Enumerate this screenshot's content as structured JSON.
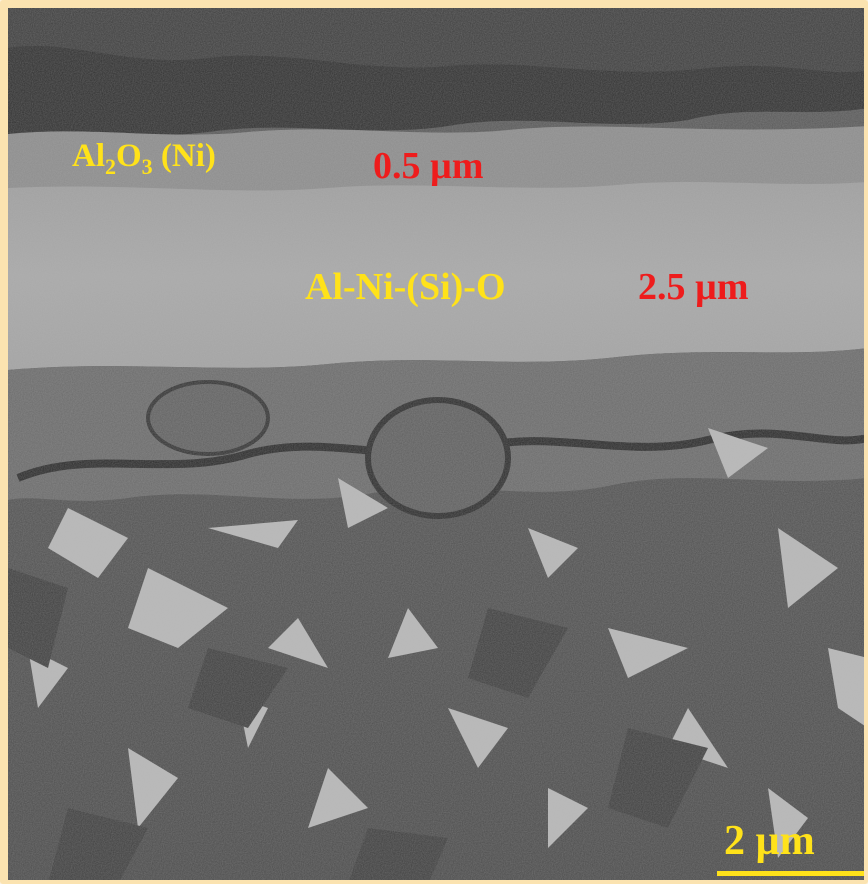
{
  "colors": {
    "border": "#fbe3b0",
    "label_yellow": "#ffe21a",
    "label_red": "#ee1c1c"
  },
  "labels": {
    "top_layer_base": "Al",
    "top_layer_sub1": "2",
    "top_layer_mid": "O",
    "top_layer_sub2": "3",
    "top_layer_tail": " (Ni)",
    "top_layer_thickness": "0.5 µm",
    "middle_layer": "Al-Ni-(Si)-O",
    "middle_layer_thickness": "2.5 µm"
  },
  "scale_bar": {
    "label": "2 µm"
  }
}
